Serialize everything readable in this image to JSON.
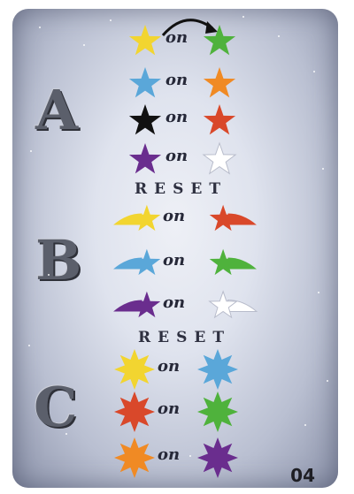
{
  "card": {
    "number": "04",
    "reset_label": "RESET",
    "on_label": "on"
  },
  "sections": [
    {
      "letter": "A",
      "rows": [
        {
          "left": {
            "shape": "star-icon",
            "color": "#f2d530"
          },
          "right": {
            "shape": "star-icon",
            "color": "#4fb23c"
          }
        },
        {
          "left": {
            "shape": "star-icon",
            "color": "#5aa7d9"
          },
          "right": {
            "shape": "star-icon",
            "color": "#f08a24"
          }
        },
        {
          "left": {
            "shape": "star-icon",
            "color": "#111111"
          },
          "right": {
            "shape": "star-icon",
            "color": "#d9482a"
          }
        },
        {
          "left": {
            "shape": "star-icon",
            "color": "#6a2d8e"
          },
          "right": {
            "shape": "star-icon",
            "color": "#ffffff"
          }
        }
      ]
    },
    {
      "letter": "B",
      "rows": [
        {
          "left": {
            "shape": "shooting-star-icon",
            "color": "#f2d530"
          },
          "right": {
            "shape": "shooting-star-icon",
            "color": "#d9482a"
          }
        },
        {
          "left": {
            "shape": "shooting-star-icon",
            "color": "#5aa7d9"
          },
          "right": {
            "shape": "shooting-star-icon",
            "color": "#4fb23c"
          }
        },
        {
          "left": {
            "shape": "shooting-star-icon",
            "color": "#6a2d8e"
          },
          "right": {
            "shape": "shooting-star-icon",
            "color": "#ffffff"
          }
        }
      ]
    },
    {
      "letter": "C",
      "rows": [
        {
          "left": {
            "shape": "eight-point-star-icon",
            "color": "#f2d530"
          },
          "right": {
            "shape": "eight-point-star-icon",
            "color": "#5aa7d9"
          }
        },
        {
          "left": {
            "shape": "eight-point-star-icon",
            "color": "#d9482a"
          },
          "right": {
            "shape": "eight-point-star-icon",
            "color": "#4fb23c"
          }
        },
        {
          "left": {
            "shape": "eight-point-star-icon",
            "color": "#f08a24"
          },
          "right": {
            "shape": "eight-point-star-icon",
            "color": "#6a2d8e"
          }
        }
      ]
    }
  ]
}
